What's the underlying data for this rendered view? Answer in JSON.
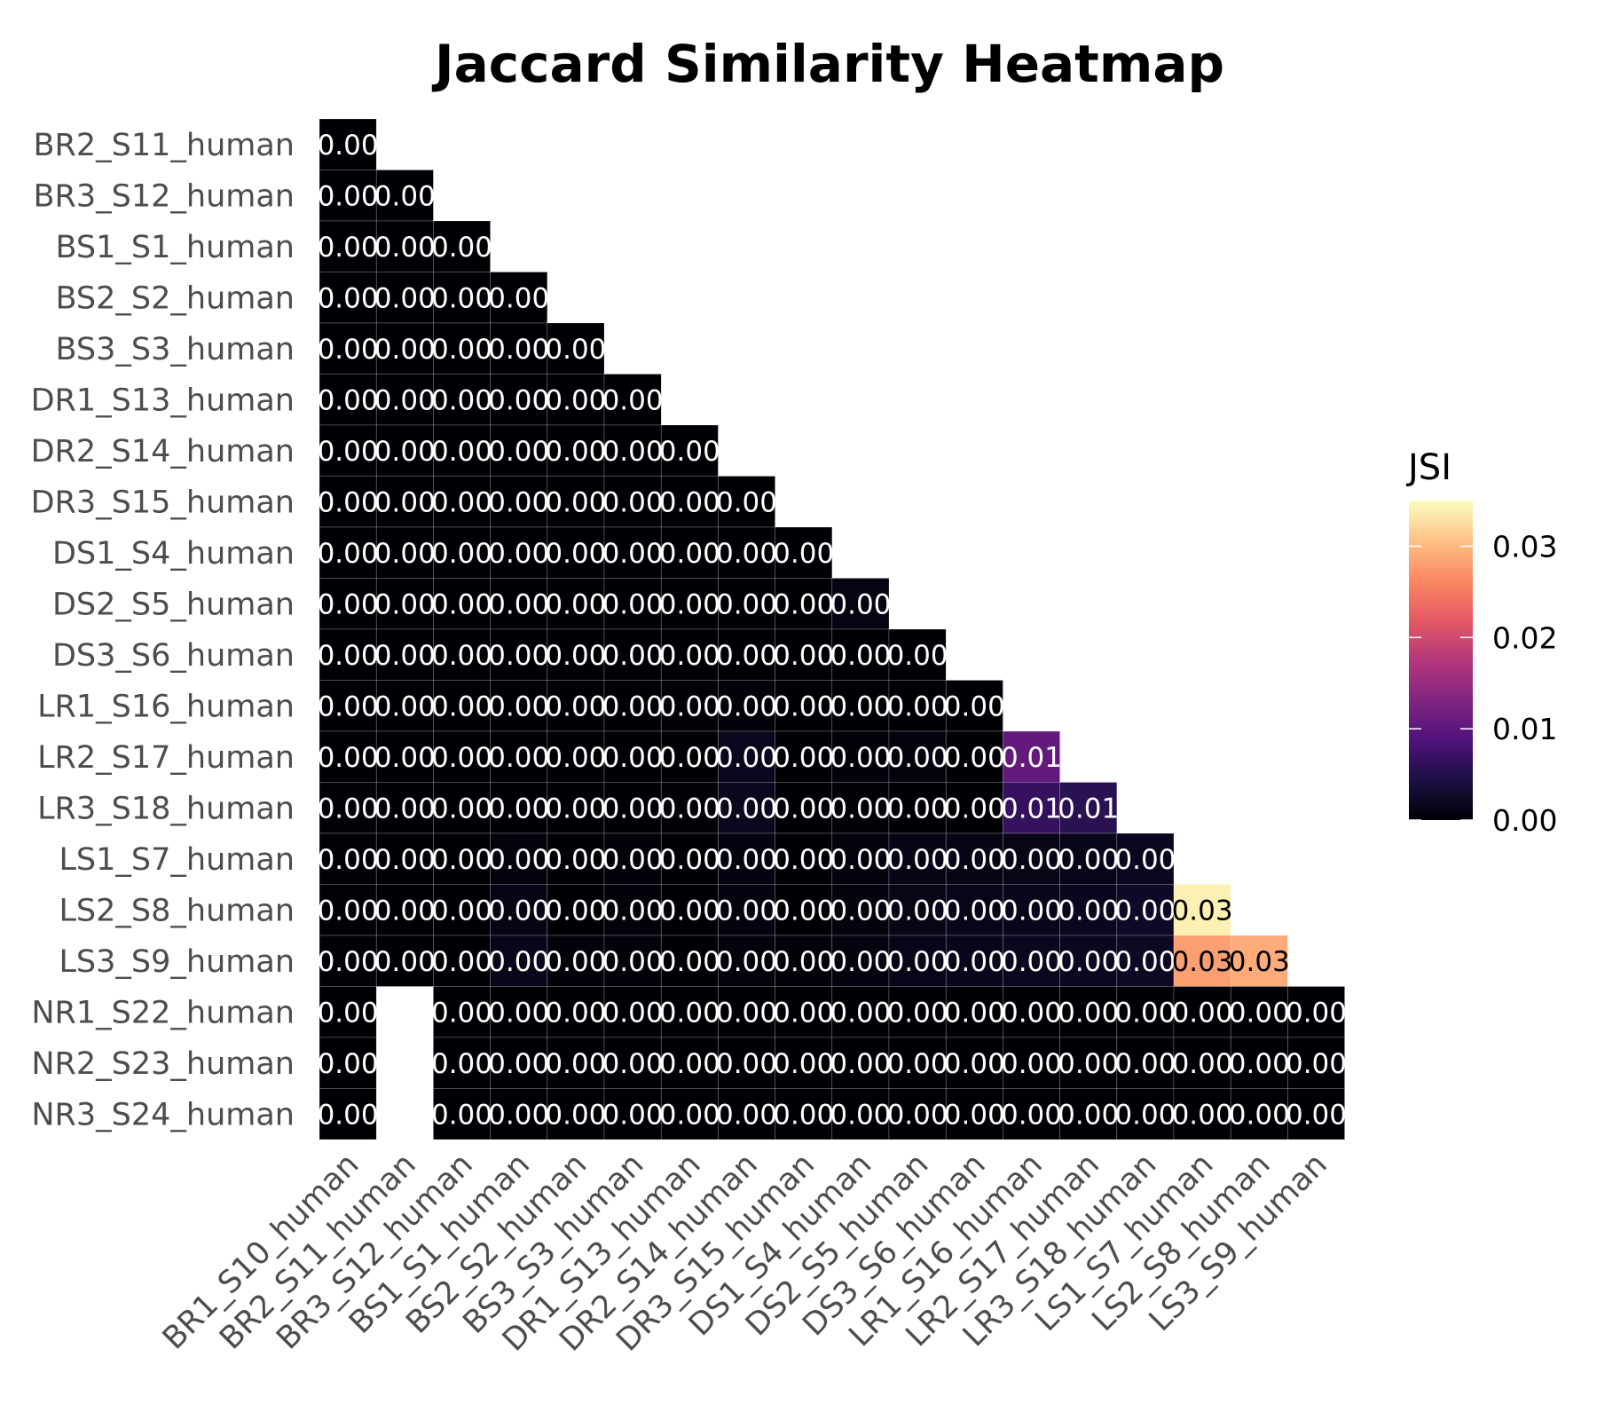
{
  "chart_data": {
    "type": "heatmap",
    "title": "Jaccard Similarity Heatmap",
    "colorbar": {
      "label": "JSI",
      "colormap": "magma",
      "range": [
        0,
        0.035
      ],
      "ticks": [
        0.0,
        0.01,
        0.02,
        0.03
      ],
      "tick_labels": [
        "0.00",
        "0.01",
        "0.02",
        "0.03"
      ]
    },
    "rows": [
      "BR2_S11_human",
      "BR3_S12_human",
      "BS1_S1_human",
      "BS2_S2_human",
      "BS3_S3_human",
      "DR1_S13_human",
      "DR2_S14_human",
      "DR3_S15_human",
      "DS1_S4_human",
      "DS2_S5_human",
      "DS3_S6_human",
      "LR1_S16_human",
      "LR2_S17_human",
      "LR3_S18_human",
      "LS1_S7_human",
      "LS2_S8_human",
      "LS3_S9_human",
      "NR1_S22_human",
      "NR2_S23_human",
      "NR3_S24_human"
    ],
    "columns": [
      "BR1_S10_human",
      "BR2_S11_human",
      "BR3_S12_human",
      "BS1_S1_human",
      "BS2_S2_human",
      "BS3_S3_human",
      "DR1_S13_human",
      "DR2_S14_human",
      "DR3_S15_human",
      "DS1_S4_human",
      "DS2_S5_human",
      "DS3_S6_human",
      "LR1_S16_human",
      "LR2_S17_human",
      "LR3_S18_human",
      "LS1_S7_human",
      "LS2_S8_human",
      "LS3_S9_human"
    ],
    "values": [
      [
        0.0
      ],
      [
        0.0,
        0.0
      ],
      [
        0.0,
        0.0,
        0.0
      ],
      [
        0.0,
        0.0,
        0.0,
        0.0
      ],
      [
        0.0,
        0.0,
        0.0,
        0.0,
        0.0
      ],
      [
        0.0,
        0.0,
        0.0,
        0.0,
        0.0,
        0.0
      ],
      [
        0.0,
        0.0,
        0.0,
        0.0,
        0.0,
        0.0,
        0.0
      ],
      [
        0.0,
        0.0,
        0.0,
        0.0,
        0.0,
        0.0,
        0.0,
        0.0
      ],
      [
        0.0,
        0.0,
        0.0,
        0.0,
        0.0,
        0.0,
        0.0,
        0.0,
        0.0
      ],
      [
        0.0,
        0.0,
        0.0,
        0.0,
        0.0,
        0.0,
        0.0,
        0.0,
        0.0,
        0.001
      ],
      [
        0.0,
        0.0,
        0.0,
        0.0,
        0.0,
        0.0,
        0.0,
        0.0,
        0.0,
        0.0,
        0.0
      ],
      [
        0.0,
        0.0,
        0.0,
        0.0,
        0.0,
        0.0,
        0.0003,
        0.0005,
        0.0,
        0.0,
        0.0,
        0.0
      ],
      [
        0.0,
        0.0,
        0.0,
        0.0,
        0.0,
        0.0,
        0.0,
        0.0018,
        0.0,
        0.0004,
        0.0006,
        0.0,
        0.0105
      ],
      [
        0.0003,
        0.0,
        0.0,
        0.0,
        0.0,
        0.0,
        0.0003,
        0.0018,
        0.0,
        0.0003,
        0.0,
        0.0,
        0.0065,
        0.0055
      ],
      [
        0.0003,
        0.0,
        0.0,
        0.0006,
        0.0,
        0.0004,
        0.0,
        0.0008,
        0.0,
        0.0006,
        0.0012,
        0.0012,
        0.0013,
        0.0014,
        0.0018
      ],
      [
        0.0003,
        0.0,
        0.0,
        0.0012,
        0.0,
        0.0005,
        0.0,
        0.0008,
        0.0,
        0.0007,
        0.0013,
        0.0014,
        0.0015,
        0.0017,
        0.0023,
        0.034
      ],
      [
        0.0003,
        0.0,
        0.0,
        0.0015,
        0.0004,
        0.0004,
        0.0,
        0.0006,
        0.0004,
        0.0008,
        0.0014,
        0.0015,
        0.0018,
        0.0019,
        0.0022,
        0.028,
        0.029
      ],
      [
        0.0,
        null,
        0.0,
        0.0,
        0.0,
        0.0,
        0.0,
        0.0,
        0.0,
        0.0,
        0.0,
        0.0,
        0.0,
        0.0,
        0.0,
        0.0,
        0.0,
        0.0
      ],
      [
        0.0,
        null,
        0.0,
        0.0,
        0.0,
        0.0,
        0.0,
        0.0,
        0.0,
        0.0,
        0.0,
        0.0,
        0.0,
        0.0,
        0.0,
        0.0,
        0.0,
        0.0
      ],
      [
        0.0,
        null,
        0.0,
        0.0,
        0.0,
        0.0,
        0.0,
        0.0,
        0.0,
        0.0,
        0.0,
        0.0,
        0.0,
        0.0,
        0.0,
        0.0,
        0.0,
        0.0
      ]
    ],
    "labels": [
      [
        "0.00"
      ],
      [
        "0.00",
        "0.00"
      ],
      [
        "0.00",
        "0.00",
        "0.00"
      ],
      [
        "0.00",
        "0.00",
        "0.00",
        "0.00"
      ],
      [
        "0.00",
        "0.00",
        "0.00",
        "0.00",
        "0.00"
      ],
      [
        "0.00",
        "0.00",
        "0.00",
        "0.00",
        "0.00",
        "0.00"
      ],
      [
        "0.00",
        "0.00",
        "0.00",
        "0.00",
        "0.00",
        "0.00",
        "0.00"
      ],
      [
        "0.00",
        "0.00",
        "0.00",
        "0.00",
        "0.00",
        "0.00",
        "0.00",
        "0.00"
      ],
      [
        "0.00",
        "0.00",
        "0.00",
        "0.00",
        "0.00",
        "0.00",
        "0.00",
        "0.00",
        "0.00"
      ],
      [
        "0.00",
        "0.00",
        "0.00",
        "0.00",
        "0.00",
        "0.00",
        "0.00",
        "0.00",
        "0.00",
        "0.00"
      ],
      [
        "0.00",
        "0.00",
        "0.00",
        "0.00",
        "0.00",
        "0.00",
        "0.00",
        "0.00",
        "0.00",
        "0.00",
        "0.00"
      ],
      [
        "0.00",
        "0.00",
        "0.00",
        "0.00",
        "0.00",
        "0.00",
        "0.00",
        "0.00",
        "0.00",
        "0.00",
        "0.00",
        "0.00"
      ],
      [
        "0.00",
        "0.00",
        "0.00",
        "0.00",
        "0.00",
        "0.00",
        "0.00",
        "0.00",
        "0.00",
        "0.00",
        "0.00",
        "0.00",
        "0.01"
      ],
      [
        "0.00",
        "0.00",
        "0.00",
        "0.00",
        "0.00",
        "0.00",
        "0.00",
        "0.00",
        "0.00",
        "0.00",
        "0.00",
        "0.00",
        "0.01",
        "0.01"
      ],
      [
        "0.00",
        "0.00",
        "0.00",
        "0.00",
        "0.00",
        "0.00",
        "0.00",
        "0.00",
        "0.00",
        "0.00",
        "0.00",
        "0.00",
        "0.00",
        "0.00",
        "0.00"
      ],
      [
        "0.00",
        "0.00",
        "0.00",
        "0.00",
        "0.00",
        "0.00",
        "0.00",
        "0.00",
        "0.00",
        "0.00",
        "0.00",
        "0.00",
        "0.00",
        "0.00",
        "0.00",
        "0.03"
      ],
      [
        "0.00",
        "0.00",
        "0.00",
        "0.00",
        "0.00",
        "0.00",
        "0.00",
        "0.00",
        "0.00",
        "0.00",
        "0.00",
        "0.00",
        "0.00",
        "0.00",
        "0.00",
        "0.03",
        "0.03"
      ],
      [
        "0.00",
        "",
        "0.00",
        "0.00",
        "0.00",
        "0.00",
        "0.00",
        "0.00",
        "0.00",
        "0.00",
        "0.00",
        "0.00",
        "0.00",
        "0.00",
        "0.00",
        "0.00",
        "0.00",
        "0.00"
      ],
      [
        "0.00",
        "",
        "0.00",
        "0.00",
        "0.00",
        "0.00",
        "0.00",
        "0.00",
        "0.00",
        "0.00",
        "0.00",
        "0.00",
        "0.00",
        "0.00",
        "0.00",
        "0.00",
        "0.00",
        "0.00"
      ],
      [
        "0.00",
        "",
        "0.00",
        "0.00",
        "0.00",
        "0.00",
        "0.00",
        "0.00",
        "0.00",
        "0.00",
        "0.00",
        "0.00",
        "0.00",
        "0.00",
        "0.00",
        "0.00",
        "0.00",
        "0.00"
      ]
    ]
  }
}
